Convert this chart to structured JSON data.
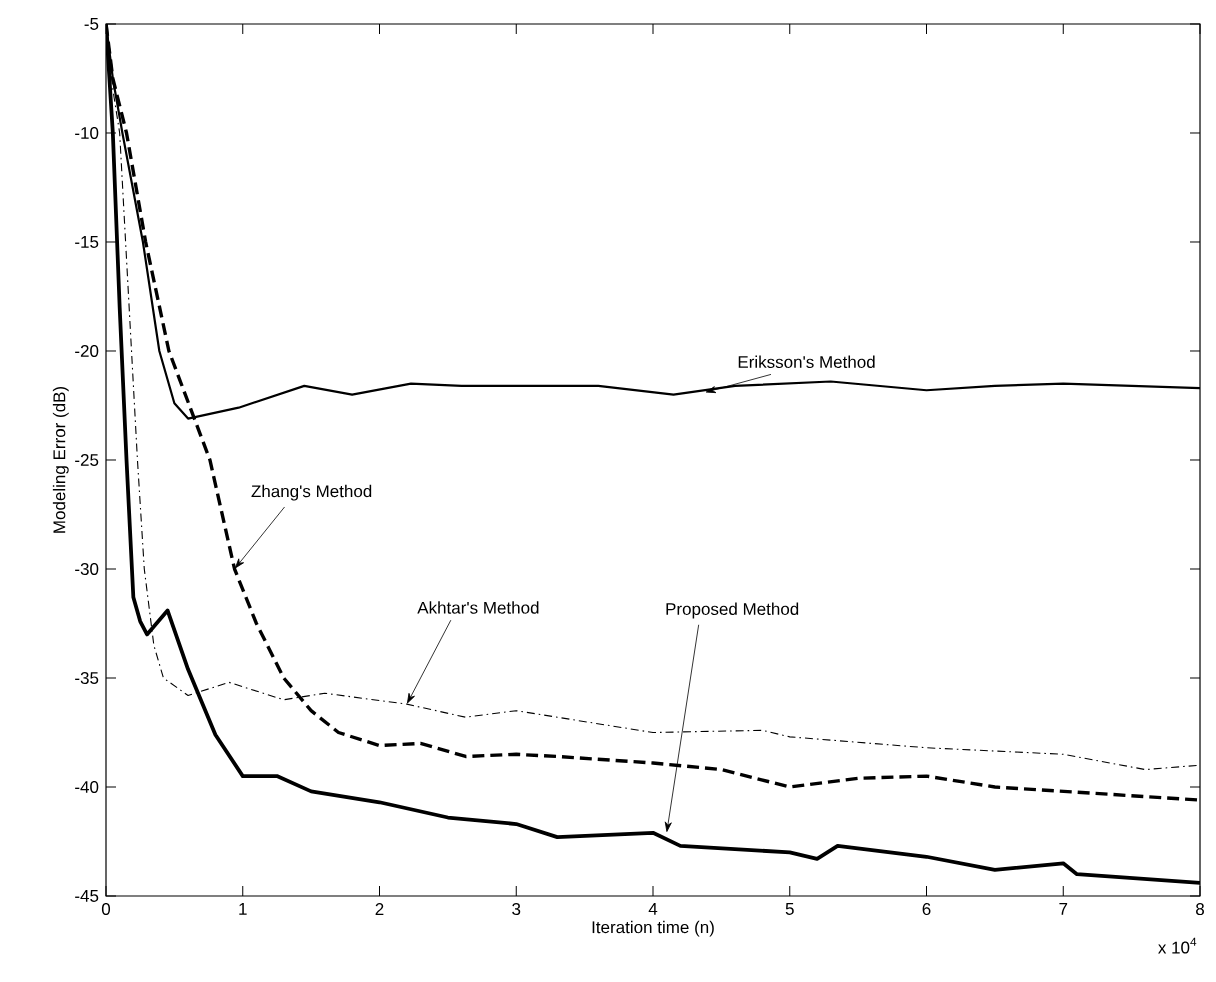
{
  "chart_data": {
    "type": "line",
    "xlabel": "Iteration time (n)",
    "ylabel": "Modeling Error (dB)",
    "xlim": [
      0,
      8
    ],
    "ylim": [
      -45,
      -5
    ],
    "xticks": [
      0,
      1,
      2,
      3,
      4,
      5,
      6,
      7,
      8
    ],
    "yticks": [
      -45,
      -40,
      -35,
      -30,
      -25,
      -20,
      -15,
      -10,
      -5
    ],
    "grid": false,
    "series": [
      {
        "color": "#000000",
        "line_style": "solid",
        "x": [
          0,
          0.05,
          0.12,
          0.27,
          0.39,
          0.5,
          0.6,
          0.97,
          1.45,
          1.8,
          2.23,
          2.6,
          3.0,
          3.6,
          4.15,
          4.6,
          5.3,
          6.0,
          6.5,
          7.0,
          7.5,
          8
        ],
        "values": [
          -5,
          -7.5,
          -10,
          -15,
          -20,
          -22.4,
          -23.1,
          -22.6,
          -21.6,
          -22,
          -21.5,
          -21.6,
          -21.6,
          -21.6,
          -22,
          -21.6,
          -21.4,
          -21.8,
          -21.6,
          -21.5,
          -21.6,
          -21.7
        ]
      },
      {
        "color": "#000000",
        "line_style": "dashed",
        "x": [
          0,
          0.05,
          0.15,
          0.29,
          0.46,
          0.76,
          0.94,
          1.1,
          1.3,
          1.5,
          1.7,
          2.0,
          2.3,
          2.63,
          3.0,
          3.3,
          4.0,
          4.5,
          5.0,
          5.5,
          6.0,
          6.5,
          7.0,
          7.5,
          8
        ],
        "values": [
          -5,
          -7.5,
          -10,
          -15,
          -20,
          -25,
          -30,
          -32.5,
          -35,
          -36.5,
          -37.5,
          -38.1,
          -38,
          -38.6,
          -38.5,
          -38.6,
          -38.9,
          -39.2,
          -40,
          -39.6,
          -39.5,
          -40,
          -40.2,
          -40.4,
          -40.6
        ]
      },
      {
        "color": "#000000",
        "line_style": "dashdot",
        "x": [
          0,
          0.05,
          0.1,
          0.23,
          0.28,
          0.35,
          0.42,
          0.6,
          0.9,
          1.3,
          1.6,
          2.2,
          2.63,
          3.0,
          3.3,
          4.0,
          4.8,
          5.0,
          6.0,
          7.0,
          7.6,
          8
        ],
        "values": [
          -5,
          -8,
          -10,
          -25,
          -30,
          -33.5,
          -35,
          -35.8,
          -35.2,
          -36,
          -35.7,
          -36.2,
          -36.8,
          -36.5,
          -36.8,
          -37.5,
          -37.4,
          -37.7,
          -38.2,
          -38.5,
          -39.2,
          -39
        ]
      },
      {
        "color": "#000000",
        "line_style": "solid",
        "x": [
          0,
          0.05,
          0.1,
          0.15,
          0.2,
          0.25,
          0.3,
          0.45,
          0.6,
          0.8,
          1.0,
          1.25,
          1.5,
          2.0,
          2.5,
          3.0,
          3.3,
          4.0,
          4.2,
          5.0,
          5.2,
          5.35,
          6.0,
          6.5,
          7.0,
          7.1,
          8
        ],
        "values": [
          -5,
          -10,
          -18,
          -25,
          -31.3,
          -32.4,
          -33,
          -31.9,
          -34.6,
          -37.6,
          -39.5,
          -39.5,
          -40.2,
          -40.7,
          -41.4,
          -41.7,
          -42.3,
          -42.1,
          -42.7,
          -43,
          -43.3,
          -42.7,
          -43.2,
          -43.8,
          -43.5,
          -44,
          -44.4
        ]
      }
    ],
    "annotations": [
      {
        "text": "Eriksson's Method",
        "x": 4.38,
        "y": -21.9
      },
      {
        "text": "Zhang's Method",
        "x": 0.94,
        "y": -30
      },
      {
        "text": "Akhtar's Method",
        "x": 2.2,
        "y": -36.2
      },
      {
        "text": "Proposed Method",
        "x": 4.1,
        "y": -42.1
      },
      "x 10$^{4}$"
    ]
  }
}
